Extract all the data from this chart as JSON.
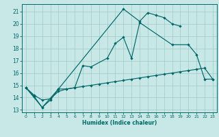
{
  "xlabel": "Humidex (Indice chaleur)",
  "background_color": "#c8e8e8",
  "grid_color": "#a0c8c8",
  "line_color": "#006666",
  "xlim": [
    -0.5,
    23.5
  ],
  "ylim": [
    12.8,
    21.6
  ],
  "yticks": [
    13,
    14,
    15,
    16,
    17,
    18,
    19,
    20,
    21
  ],
  "xticks": [
    0,
    1,
    2,
    3,
    4,
    5,
    6,
    7,
    8,
    9,
    10,
    11,
    12,
    13,
    14,
    15,
    16,
    17,
    18,
    19,
    20,
    21,
    22,
    23
  ],
  "s1x": [
    0,
    1,
    2,
    3,
    4,
    5,
    6,
    7,
    8,
    9,
    10,
    11,
    12,
    13,
    14,
    15,
    16,
    17,
    18,
    19,
    20,
    21,
    22,
    23
  ],
  "s1y": [
    14.8,
    14.1,
    13.2,
    13.8,
    14.7,
    14.7,
    14.8,
    14.9,
    15.0,
    15.1,
    15.2,
    15.3,
    15.4,
    15.5,
    15.6,
    15.7,
    15.8,
    15.9,
    16.0,
    16.1,
    16.2,
    16.3,
    16.4,
    15.5
  ],
  "s2x": [
    0,
    1,
    2,
    3,
    4,
    5,
    6,
    7,
    8,
    10,
    11,
    12,
    13,
    14,
    18,
    20,
    21,
    22,
    23
  ],
  "s2y": [
    14.8,
    14.2,
    13.8,
    13.9,
    14.5,
    14.7,
    14.8,
    16.6,
    16.5,
    17.2,
    18.4,
    18.9,
    17.2,
    20.1,
    18.3,
    18.3,
    17.5,
    15.5,
    15.5
  ],
  "s3x": [
    0,
    2,
    4,
    12,
    14,
    15,
    16,
    17,
    18,
    19
  ],
  "s3y": [
    14.8,
    13.2,
    14.7,
    21.2,
    20.2,
    20.9,
    20.7,
    20.5,
    20.0,
    19.8
  ]
}
